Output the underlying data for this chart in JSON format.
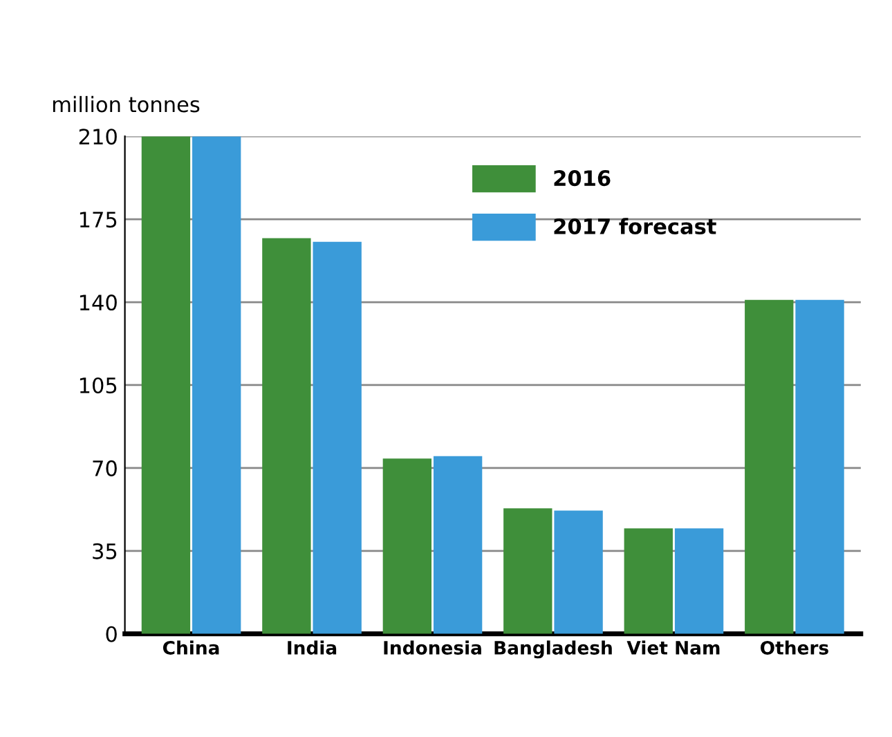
{
  "chart_data": {
    "type": "bar",
    "ylabel": "million tonnes",
    "categories": [
      "China",
      "India",
      "Indonesia",
      "Bangladesh",
      "Viet Nam",
      "Others"
    ],
    "series": [
      {
        "name": "2016",
        "color": "#3f8f3a",
        "values": [
          210,
          167,
          74,
          53,
          44.5,
          141
        ]
      },
      {
        "name": "2017 forecast",
        "color": "#3a9bd9",
        "values": [
          210,
          165.5,
          75,
          52,
          44.5,
          141
        ]
      }
    ],
    "ylim": [
      0,
      210
    ],
    "yticks": [
      0,
      35,
      70,
      105,
      140,
      175,
      210
    ],
    "grid": "y",
    "legend": "top right"
  }
}
